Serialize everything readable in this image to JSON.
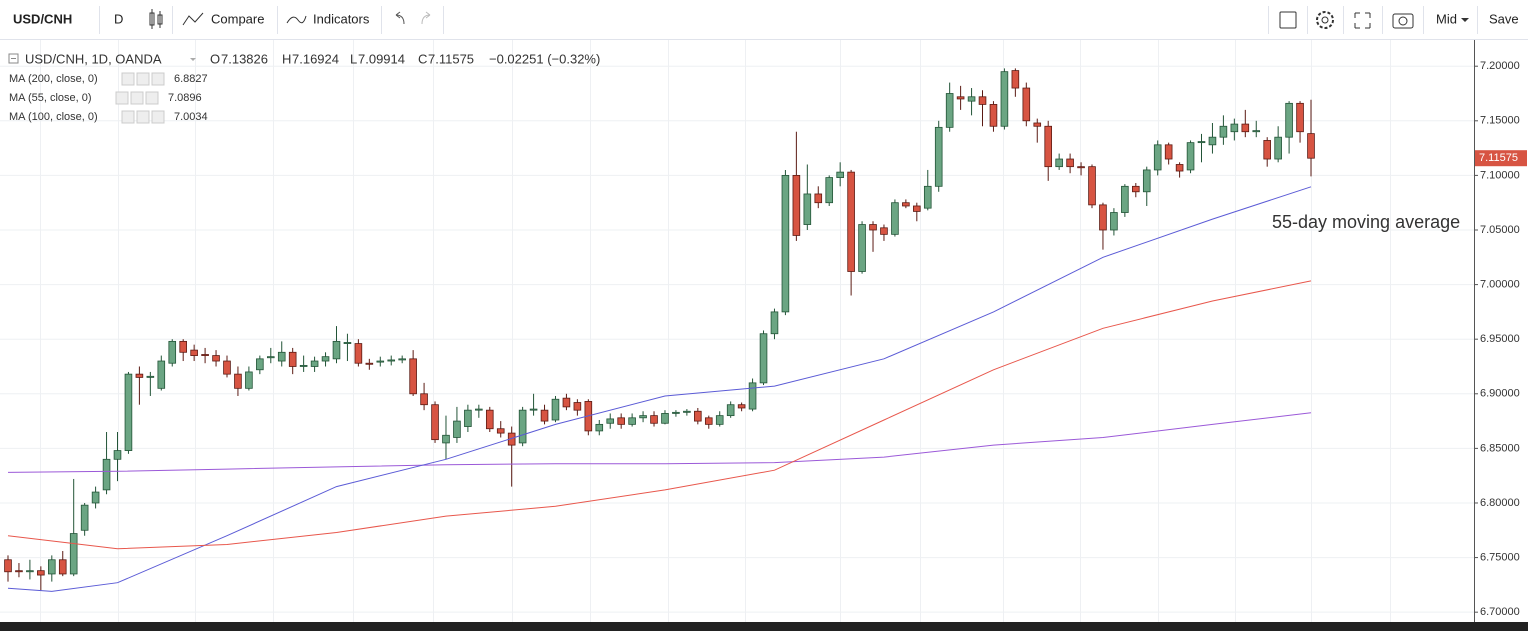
{
  "toolbar": {
    "symbol": "USD/CNH",
    "interval": "D",
    "compare": "Compare",
    "indicators": "Indicators",
    "price_source": "Mid",
    "save": "Save"
  },
  "chart_data": {
    "type": "candlestick",
    "title": "USD/CNH, 1D, OANDA",
    "ohlc_letters": {
      "open": "O",
      "high": "H",
      "low": "L",
      "close": "C"
    },
    "change": "−0.02251 (−0.32%)",
    "annotation": "55-day moving average",
    "up_color": "#6ba583",
    "down_color": "#d75442",
    "open": [
      6.748,
      6.738,
      6.737,
      6.738,
      6.735,
      6.748,
      6.735,
      6.775,
      6.8,
      6.812,
      6.84,
      6.848,
      6.918,
      6.915,
      6.905,
      6.928,
      6.948,
      6.94,
      6.936,
      6.935,
      6.93,
      6.918,
      6.905,
      6.922,
      6.933,
      6.93,
      6.938,
      6.925,
      6.925,
      6.93,
      6.932,
      6.946,
      6.946,
      6.928,
      6.929,
      6.93,
      6.931,
      6.932,
      6.9,
      6.89,
      6.855,
      6.86,
      6.87,
      6.885,
      6.885,
      6.868,
      6.864,
      6.855,
      6.885,
      6.885,
      6.876,
      6.896,
      6.892,
      6.893,
      6.866,
      6.873,
      6.878,
      6.872,
      6.878,
      6.88,
      6.873,
      6.882,
      6.883,
      6.884,
      6.878,
      6.872,
      6.88,
      6.89,
      6.886,
      6.91,
      6.955,
      6.975,
      7.1,
      7.055,
      7.083,
      7.075,
      7.098,
      7.103,
      7.012,
      7.055,
      7.052,
      7.046,
      7.075,
      7.072,
      7.07,
      7.09,
      7.144,
      7.172,
      7.168,
      7.172,
      7.165,
      7.145,
      7.196,
      7.18,
      7.148,
      7.145,
      7.108,
      7.115,
      7.108,
      7.108,
      7.073,
      7.05,
      7.066,
      7.09,
      7.085,
      7.105,
      7.128,
      7.11,
      7.105,
      7.13,
      7.128,
      7.135,
      7.14,
      7.147,
      7.14,
      7.132,
      7.115,
      7.135,
      7.166,
      7.13826
    ],
    "high": [
      6.752,
      6.745,
      6.748,
      6.742,
      6.752,
      6.756,
      6.822,
      6.8,
      6.815,
      6.865,
      6.865,
      6.92,
      6.925,
      6.92,
      6.935,
      6.95,
      6.95,
      6.945,
      6.942,
      6.94,
      6.935,
      6.925,
      6.925,
      6.935,
      6.942,
      6.948,
      6.942,
      6.935,
      6.934,
      6.938,
      6.962,
      6.955,
      6.95,
      6.932,
      6.934,
      6.935,
      6.935,
      6.94,
      6.91,
      6.893,
      6.88,
      6.888,
      6.89,
      6.89,
      6.888,
      6.875,
      6.87,
      6.888,
      6.9,
      6.89,
      6.898,
      6.9,
      6.895,
      6.895,
      6.876,
      6.882,
      6.882,
      6.882,
      6.884,
      6.884,
      6.885,
      6.885,
      6.886,
      6.887,
      6.88,
      6.884,
      6.893,
      6.892,
      6.914,
      6.958,
      6.978,
      7.105,
      7.14,
      7.11,
      7.09,
      7.1,
      7.112,
      7.105,
      7.058,
      7.058,
      7.055,
      7.078,
      7.078,
      7.075,
      7.105,
      7.15,
      7.185,
      7.182,
      7.18,
      7.178,
      7.168,
      7.198,
      7.198,
      7.185,
      7.152,
      7.15,
      7.12,
      7.12,
      7.112,
      7.11,
      7.075,
      7.07,
      7.092,
      7.093,
      7.108,
      7.132,
      7.13,
      7.112,
      7.132,
      7.138,
      7.148,
      7.155,
      7.152,
      7.16,
      7.15,
      7.135,
      7.145,
      7.168,
      7.168,
      7.16924
    ],
    "low": [
      6.728,
      6.732,
      6.73,
      6.72,
      6.728,
      6.733,
      6.733,
      6.77,
      6.795,
      6.808,
      6.82,
      6.845,
      6.89,
      6.898,
      6.903,
      6.925,
      6.93,
      6.93,
      6.928,
      6.925,
      6.915,
      6.898,
      6.903,
      6.918,
      6.928,
      6.925,
      6.918,
      6.92,
      6.92,
      6.925,
      6.928,
      6.93,
      6.925,
      6.922,
      6.925,
      6.926,
      6.928,
      6.898,
      6.885,
      6.855,
      6.84,
      6.855,
      6.865,
      6.878,
      6.865,
      6.86,
      6.815,
      6.852,
      6.88,
      6.872,
      6.874,
      6.885,
      6.88,
      6.862,
      6.862,
      6.868,
      6.868,
      6.87,
      6.874,
      6.87,
      6.872,
      6.879,
      6.88,
      6.872,
      6.868,
      6.87,
      6.878,
      6.884,
      6.884,
      6.908,
      6.95,
      6.972,
      7.04,
      7.05,
      7.07,
      7.072,
      7.09,
      6.99,
      7.01,
      7.03,
      7.04,
      7.044,
      7.07,
      7.058,
      7.068,
      7.085,
      7.14,
      7.16,
      7.155,
      7.145,
      7.14,
      7.142,
      7.172,
      7.145,
      7.13,
      7.095,
      7.105,
      7.102,
      7.1,
      7.07,
      7.032,
      7.045,
      7.062,
      7.08,
      7.072,
      7.1,
      7.11,
      7.098,
      7.102,
      7.112,
      7.12,
      7.128,
      7.132,
      7.135,
      7.135,
      7.108,
      7.112,
      7.12,
      7.13,
      7.09914
    ],
    "close": [
      6.737,
      6.737,
      6.738,
      6.734,
      6.748,
      6.735,
      6.772,
      6.798,
      6.81,
      6.84,
      6.848,
      6.918,
      6.915,
      6.916,
      6.93,
      6.948,
      6.938,
      6.935,
      6.935,
      6.93,
      6.918,
      6.905,
      6.92,
      6.932,
      6.934,
      6.938,
      6.925,
      6.926,
      6.93,
      6.934,
      6.948,
      6.947,
      6.928,
      6.927,
      6.93,
      6.931,
      6.932,
      6.9,
      6.89,
      6.858,
      6.862,
      6.875,
      6.885,
      6.886,
      6.868,
      6.864,
      6.853,
      6.885,
      6.886,
      6.875,
      6.895,
      6.888,
      6.885,
      6.866,
      6.872,
      6.877,
      6.872,
      6.878,
      6.88,
      6.873,
      6.882,
      6.883,
      6.884,
      6.875,
      6.872,
      6.88,
      6.89,
      6.887,
      6.91,
      6.955,
      6.975,
      7.1,
      7.045,
      7.083,
      7.075,
      7.098,
      7.103,
      7.012,
      7.055,
      7.05,
      7.046,
      7.075,
      7.072,
      7.067,
      7.09,
      7.144,
      7.175,
      7.17,
      7.172,
      7.165,
      7.145,
      7.195,
      7.18,
      7.15,
      7.145,
      7.108,
      7.115,
      7.108,
      7.107,
      7.073,
      7.05,
      7.066,
      7.09,
      7.085,
      7.105,
      7.128,
      7.115,
      7.104,
      7.13,
      7.131,
      7.135,
      7.145,
      7.147,
      7.14,
      7.141,
      7.115,
      7.135,
      7.166,
      7.14,
      7.11575
    ],
    "series": [
      {
        "name": "MA (200, close, 0)",
        "color": "#9b59d8",
        "x": [
          0,
          10,
          20,
          30,
          40,
          50,
          60,
          70,
          80,
          90,
          100,
          110,
          119
        ],
        "values": [
          6.828,
          6.829,
          6.831,
          6.833,
          6.835,
          6.836,
          6.836,
          6.837,
          6.842,
          6.853,
          6.86,
          6.872,
          6.8827
        ]
      },
      {
        "name": "MA (55, close, 0)",
        "color": "#5b5bd6",
        "x": [
          0,
          4,
          10,
          20,
          30,
          40,
          50,
          60,
          70,
          80,
          90,
          100,
          110,
          119
        ],
        "values": [
          6.722,
          6.719,
          6.727,
          6.77,
          6.815,
          6.84,
          6.872,
          6.898,
          6.907,
          6.932,
          6.975,
          7.025,
          7.06,
          7.0896
        ]
      },
      {
        "name": "MA (100, close, 0)",
        "color": "#e8574c",
        "x": [
          0,
          10,
          20,
          30,
          40,
          50,
          60,
          70,
          80,
          90,
          100,
          110,
          119
        ],
        "values": [
          6.77,
          6.758,
          6.762,
          6.773,
          6.788,
          6.797,
          6.812,
          6.83,
          6.876,
          6.922,
          6.96,
          6.985,
          7.0034
        ]
      }
    ],
    "ylim": [
      6.691,
      7.224
    ],
    "yticks": [
      {
        "value": 6.7,
        "label": "6.70000"
      },
      {
        "value": 6.75,
        "label": "6.75000"
      },
      {
        "value": 6.8,
        "label": "6.80000"
      },
      {
        "value": 6.85,
        "label": "6.85000"
      },
      {
        "value": 6.9,
        "label": "6.90000"
      },
      {
        "value": 6.95,
        "label": "6.95000"
      },
      {
        "value": 7.0,
        "label": "7.00000"
      },
      {
        "value": 7.05,
        "label": "7.05000"
      },
      {
        "value": 7.1,
        "label": "7.10000"
      },
      {
        "value": 7.15,
        "label": "7.15000"
      },
      {
        "value": 7.2,
        "label": "7.20000"
      }
    ],
    "grid": true
  }
}
